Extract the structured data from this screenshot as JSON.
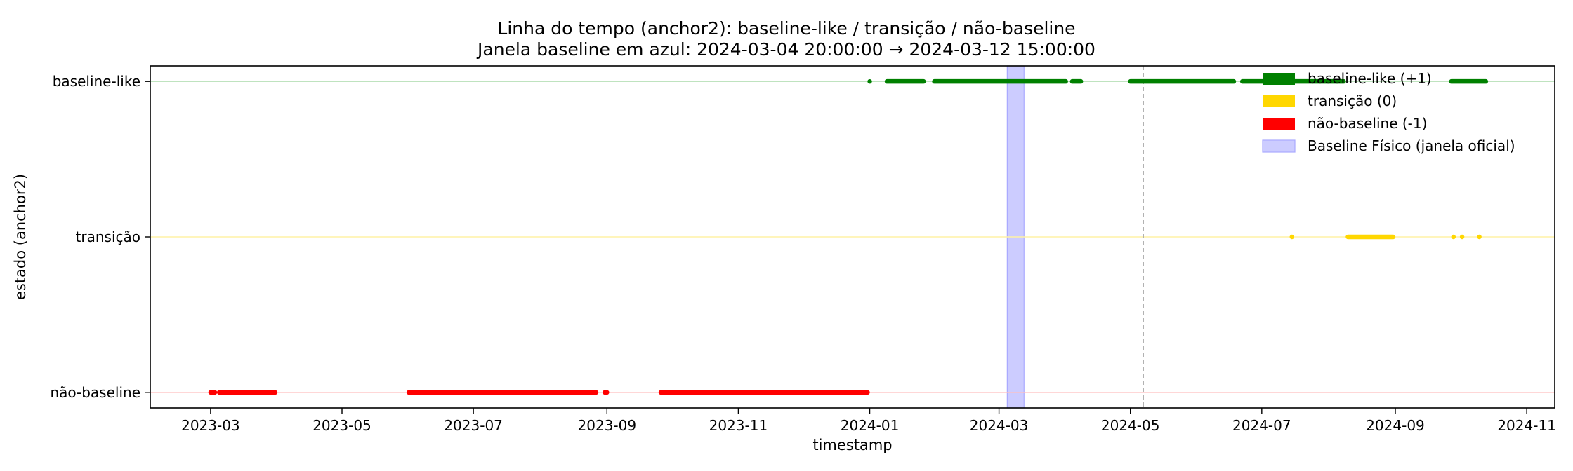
{
  "chart_data": {
    "type": "scatter",
    "title": "Linha do tempo (anchor2): baseline-like / transição / não-baseline",
    "subtitle": "Janela baseline em azul: 2024-03-04 20:00:00 → 2024-03-12 15:00:00",
    "xlabel": "timestamp",
    "ylabel": "estado (anchor2)",
    "x_ticks": [
      "2023-03",
      "2023-05",
      "2023-07",
      "2023-09",
      "2023-11",
      "2024-01",
      "2024-03",
      "2024-05",
      "2024-07",
      "2024-09",
      "2024-11"
    ],
    "xlim": [
      "2023-02-01",
      "2024-11-14"
    ],
    "y_ticks": [
      {
        "value": 1,
        "label": "baseline-like"
      },
      {
        "value": 0,
        "label": "transição"
      },
      {
        "value": -1,
        "label": "não-baseline"
      }
    ],
    "ylim": [
      -1.1,
      1.1
    ],
    "grid": false,
    "legend_position": "top-right",
    "legend": [
      {
        "label": "baseline-like (+1)",
        "color": "#008000",
        "kind": "patch"
      },
      {
        "label": "transição (0)",
        "color": "#FFD700",
        "kind": "patch"
      },
      {
        "label": "não-baseline (-1)",
        "color": "#FF0000",
        "kind": "patch"
      },
      {
        "label": "Baseline Físico (janela oficial)",
        "color": "#CCCCFF",
        "kind": "span"
      }
    ],
    "baseline_window": {
      "start": "2024-03-04 20:00:00",
      "end": "2024-03-12 15:00:00",
      "color": "#CCCCFF"
    },
    "vertical_line": {
      "date": "2024-05-07",
      "color": "#aaaaaa",
      "style": "dashed"
    },
    "series": [
      {
        "name": "baseline-like (+1)",
        "state": 1,
        "color": "#008000",
        "segments": [
          [
            "2024-01-01",
            "2024-01-01"
          ],
          [
            "2024-01-09",
            "2024-01-26"
          ],
          [
            "2024-01-31",
            "2024-04-01"
          ],
          [
            "2024-04-04",
            "2024-04-08"
          ],
          [
            "2024-05-01",
            "2024-06-18"
          ],
          [
            "2024-06-22",
            "2024-08-08"
          ],
          [
            "2024-09-27",
            "2024-10-13"
          ]
        ]
      },
      {
        "name": "transição (0)",
        "state": 0,
        "color": "#FFD700",
        "segments": [
          [
            "2024-07-15",
            "2024-07-15"
          ],
          [
            "2024-08-10",
            "2024-08-31"
          ],
          [
            "2024-09-28",
            "2024-09-28"
          ],
          [
            "2024-10-02",
            "2024-10-02"
          ],
          [
            "2024-10-10",
            "2024-10-10"
          ]
        ]
      },
      {
        "name": "não-baseline (-1)",
        "state": -1,
        "color": "#FF0000",
        "segments": [
          [
            "2023-03-01",
            "2023-03-03"
          ],
          [
            "2023-03-05",
            "2023-03-31"
          ],
          [
            "2023-06-01",
            "2023-08-27"
          ],
          [
            "2023-08-31",
            "2023-09-01"
          ],
          [
            "2023-09-26",
            "2023-12-31"
          ]
        ]
      }
    ],
    "state_lines": [
      {
        "state": 1,
        "color": "#bfe3bf"
      },
      {
        "state": 0,
        "color": "#fff2a6"
      },
      {
        "state": -1,
        "color": "#ffbfbf"
      }
    ]
  }
}
